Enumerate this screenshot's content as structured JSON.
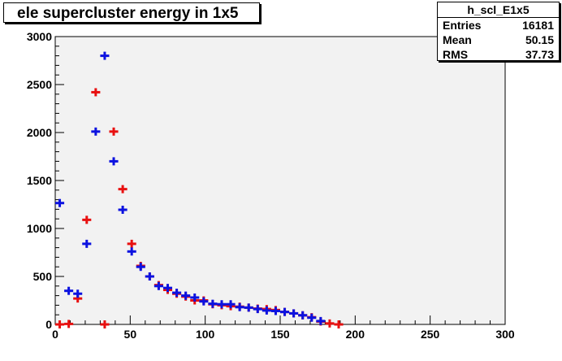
{
  "colors": {
    "frame_bg": "#f2f2f2",
    "series_red": "#e81010",
    "series_blue": "#0c12e0"
  },
  "stats": {
    "name": "h_scl_E1x5",
    "rows": [
      {
        "label": "Entries",
        "value": "16181"
      },
      {
        "label": "Mean",
        "value": "50.15"
      },
      {
        "label": "RMS",
        "value": "37.73"
      }
    ]
  },
  "chart_data": {
    "type": "scatter",
    "title": "ele supercluster energy in 1x5",
    "xlabel": "",
    "ylabel": "",
    "xlim": [
      0,
      300
    ],
    "ylim": [
      0,
      3000
    ],
    "xticks": [
      0,
      50,
      100,
      150,
      200,
      250,
      300
    ],
    "yticks": [
      0,
      500,
      1000,
      1500,
      2000,
      2500,
      3000
    ],
    "bin_width": 6,
    "grid": false,
    "legend": "none",
    "series": [
      {
        "color": "#e81010",
        "x": [
          3,
          9,
          15,
          21,
          27,
          33,
          39,
          45,
          51,
          57,
          63,
          69,
          75,
          81,
          87,
          93,
          99,
          105,
          111,
          117,
          123,
          129,
          135,
          141,
          147,
          153,
          159,
          165,
          171,
          177,
          183,
          189
        ],
        "y": [
          0,
          5,
          270,
          1090,
          2420,
          0,
          2010,
          1410,
          840,
          610,
          500,
          410,
          360,
          320,
          290,
          250,
          250,
          210,
          200,
          190,
          185,
          175,
          165,
          160,
          150,
          130,
          115,
          95,
          75,
          30,
          10,
          0
        ]
      },
      {
        "color": "#0c12e0",
        "x": [
          3,
          9,
          15,
          21,
          27,
          33,
          39,
          45,
          51,
          57,
          63,
          69,
          75,
          81,
          87,
          93,
          99,
          105,
          111,
          117,
          123,
          129,
          135,
          141,
          147,
          153,
          159,
          165,
          171,
          177
        ],
        "y": [
          1265,
          350,
          320,
          840,
          2010,
          2800,
          1700,
          1195,
          760,
          600,
          500,
          400,
          380,
          330,
          300,
          280,
          240,
          215,
          210,
          210,
          180,
          175,
          160,
          145,
          140,
          130,
          115,
          95,
          70,
          35
        ]
      }
    ]
  }
}
